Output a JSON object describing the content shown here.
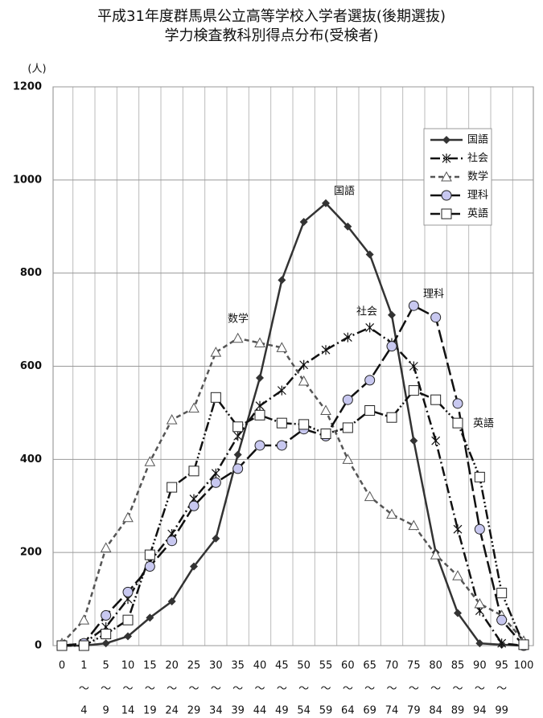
{
  "chart_data": {
    "type": "line",
    "title": "平成31年度群馬県公立高等学校入学者選抜(後期選抜)",
    "subtitle": "学力検査教科別得点分布(受検者)",
    "y_unit": "(人)",
    "categories": [
      "0",
      "1",
      "5",
      "10",
      "15",
      "20",
      "25",
      "30",
      "35",
      "40",
      "45",
      "50",
      "55",
      "60",
      "65",
      "70",
      "75",
      "80",
      "85",
      "90",
      "95",
      "100"
    ],
    "category_ends": [
      null,
      "4",
      "9",
      "14",
      "19",
      "24",
      "29",
      "34",
      "39",
      "44",
      "49",
      "54",
      "59",
      "64",
      "69",
      "74",
      "79",
      "84",
      "89",
      "94",
      "99",
      null
    ],
    "range_mark": "～",
    "ylim": [
      0,
      1200
    ],
    "yticks": [
      0,
      200,
      400,
      600,
      800,
      1000,
      1200
    ],
    "grid": true,
    "legend": "top-right",
    "series": [
      {
        "name": "国語",
        "color": "#333333",
        "marker": "diamond",
        "dash": "solid",
        "values": [
          0,
          0,
          5,
          20,
          60,
          95,
          170,
          230,
          410,
          575,
          785,
          910,
          950,
          900,
          840,
          710,
          440,
          200,
          70,
          5,
          2,
          0
        ]
      },
      {
        "name": "社会",
        "color": "#111111",
        "marker": "asterisk",
        "dash": "dashdot",
        "values": [
          0,
          5,
          40,
          100,
          180,
          240,
          315,
          370,
          450,
          515,
          548,
          603,
          635,
          662,
          683,
          650,
          600,
          440,
          250,
          75,
          5,
          0
        ]
      },
      {
        "name": "数学",
        "color": "#555555",
        "marker": "triangle",
        "dash": "dashed",
        "values": [
          5,
          55,
          210,
          275,
          395,
          485,
          510,
          630,
          660,
          650,
          640,
          568,
          505,
          400,
          320,
          282,
          258,
          195,
          150,
          90,
          65,
          10
        ]
      },
      {
        "name": "理科",
        "color": "#111111",
        "marker": "circle",
        "dash": "longdash",
        "values": [
          0,
          5,
          65,
          115,
          170,
          225,
          300,
          350,
          380,
          430,
          430,
          465,
          450,
          528,
          570,
          643,
          730,
          705,
          520,
          250,
          55,
          0
        ]
      },
      {
        "name": "英語",
        "color": "#111111",
        "marker": "square",
        "dash": "dashdotdot",
        "values": [
          0,
          0,
          25,
          55,
          195,
          340,
          375,
          533,
          470,
          495,
          478,
          475,
          455,
          468,
          505,
          490,
          548,
          528,
          478,
          362,
          113,
          2
        ]
      }
    ],
    "annotations": [
      "国語",
      "数学",
      "社会",
      "理科",
      "英語"
    ]
  }
}
